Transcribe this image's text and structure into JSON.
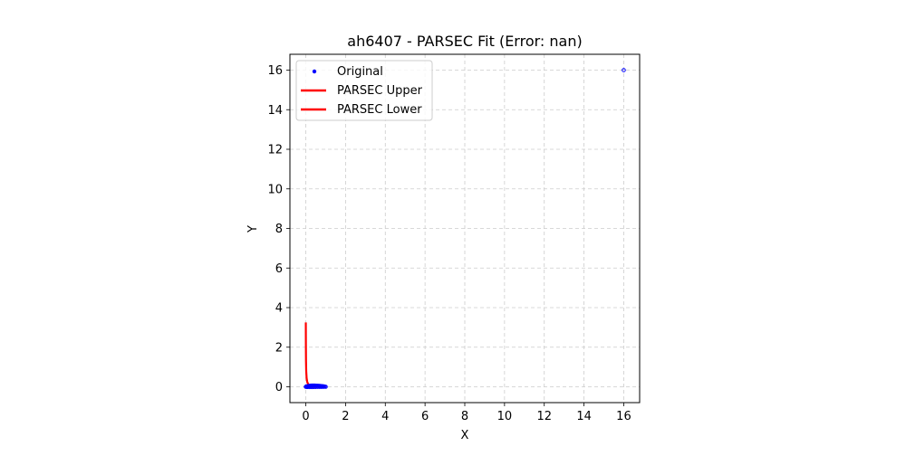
{
  "chart_data": {
    "type": "line",
    "title": "ah6407 - PARSEC Fit (Error: nan)",
    "xlabel": "X",
    "ylabel": "Y",
    "xlim": [
      -0.8,
      16.8
    ],
    "ylim": [
      -0.8,
      16.8
    ],
    "xticks": [
      0,
      2,
      4,
      6,
      8,
      10,
      12,
      14,
      16
    ],
    "yticks": [
      0,
      2,
      4,
      6,
      8,
      10,
      12,
      14,
      16
    ],
    "grid": true,
    "grid_style": "dashed",
    "legend_position": "top-left",
    "series": [
      {
        "name": "Original",
        "kind": "scatter",
        "color": "#0000ff",
        "points": [
          [
            0.0,
            0.0
          ],
          [
            0.03,
            0.01
          ],
          [
            0.06,
            0.02
          ],
          [
            0.1,
            0.03
          ],
          [
            0.15,
            0.04
          ],
          [
            0.2,
            0.05
          ],
          [
            0.25,
            0.055
          ],
          [
            0.3,
            0.06
          ],
          [
            0.35,
            0.06
          ],
          [
            0.4,
            0.06
          ],
          [
            0.45,
            0.058
          ],
          [
            0.5,
            0.055
          ],
          [
            0.55,
            0.052
          ],
          [
            0.6,
            0.05
          ],
          [
            0.65,
            0.046
          ],
          [
            0.7,
            0.042
          ],
          [
            0.75,
            0.038
          ],
          [
            0.8,
            0.033
          ],
          [
            0.85,
            0.027
          ],
          [
            0.9,
            0.02
          ],
          [
            0.95,
            0.012
          ],
          [
            1.0,
            0.0
          ],
          [
            0.03,
            -0.005
          ],
          [
            0.1,
            -0.01
          ],
          [
            0.2,
            -0.012
          ],
          [
            0.3,
            -0.012
          ],
          [
            0.4,
            -0.01
          ],
          [
            0.5,
            -0.008
          ],
          [
            0.6,
            -0.006
          ],
          [
            0.7,
            -0.004
          ],
          [
            0.8,
            -0.003
          ],
          [
            0.9,
            -0.002
          ],
          [
            16.0,
            16.0
          ]
        ]
      },
      {
        "name": "PARSEC Upper",
        "kind": "line",
        "color": "#ff0000",
        "points": [
          [
            0.0,
            3.25
          ],
          [
            0.002,
            2.6
          ],
          [
            0.005,
            1.9
          ],
          [
            0.01,
            1.3
          ],
          [
            0.02,
            0.8
          ],
          [
            0.04,
            0.45
          ],
          [
            0.07,
            0.25
          ],
          [
            0.12,
            0.13
          ],
          [
            0.2,
            0.08
          ],
          [
            0.3,
            0.06
          ],
          [
            0.45,
            0.05
          ],
          [
            0.6,
            0.045
          ],
          [
            0.75,
            0.035
          ],
          [
            0.9,
            0.02
          ],
          [
            1.0,
            0.01
          ]
        ]
      },
      {
        "name": "PARSEC Lower",
        "kind": "line",
        "color": "#ff0000",
        "points": [
          [
            0.0,
            0.0
          ],
          [
            0.02,
            -0.008
          ],
          [
            0.06,
            -0.012
          ],
          [
            0.12,
            -0.014
          ],
          [
            0.2,
            -0.014
          ],
          [
            0.3,
            -0.012
          ],
          [
            0.45,
            -0.01
          ],
          [
            0.6,
            -0.008
          ],
          [
            0.75,
            -0.005
          ],
          [
            0.9,
            -0.003
          ],
          [
            1.0,
            0.0
          ]
        ]
      }
    ]
  }
}
